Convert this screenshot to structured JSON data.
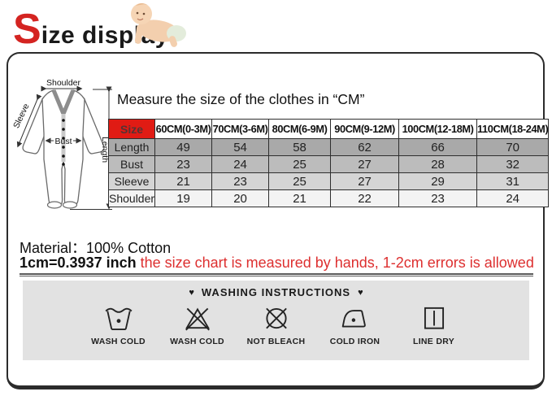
{
  "page_title": {
    "initial": "S",
    "rest": "ize display"
  },
  "diagram": {
    "shoulder_label": "Shoulder",
    "sleeve_label": "Sleeve",
    "bust_label": "Bust",
    "length_label": "Length"
  },
  "measure_heading": "Measure the size of the clothes in “CM”",
  "size_table": {
    "header": [
      "Size",
      "60CM(0-3M)",
      "70CM(3-6M)",
      "80CM(6-9M)",
      "90CM(9-12M)",
      "100CM(12-18M)",
      "110CM(18-24M)"
    ],
    "rows": [
      {
        "label": "Length",
        "values": [
          "49",
          "54",
          "58",
          "62",
          "66",
          "70"
        ]
      },
      {
        "label": "Bust",
        "values": [
          "23",
          "24",
          "25",
          "27",
          "28",
          "32"
        ]
      },
      {
        "label": "Sleeve",
        "values": [
          "21",
          "23",
          "25",
          "27",
          "29",
          "31"
        ]
      },
      {
        "label": "Shoulder",
        "values": [
          "19",
          "20",
          "21",
          "22",
          "23",
          "24"
        ]
      }
    ]
  },
  "material": {
    "label": "Material：",
    "value": "100% Cotton"
  },
  "note": {
    "conversion": "1cm=0.3937 inch",
    "disclaimer": "the size chart is measured by hands, 1-2cm errors is allowed"
  },
  "washing": {
    "heart": "♥",
    "heading": "WASHING INSTRUCTIONS",
    "items": [
      {
        "icon": "wash-tub-icon",
        "label": "WASH COLD"
      },
      {
        "icon": "no-bleach-triangle-icon",
        "label": "WASH COLD"
      },
      {
        "icon": "crossed-circle-icon",
        "label": "NOT BLEACH"
      },
      {
        "icon": "cold-iron-icon",
        "label": "COLD IRON"
      },
      {
        "icon": "line-dry-icon",
        "label": "LINE DRY"
      }
    ]
  },
  "colors": {
    "accent_red": "#e01b14",
    "title_red": "#d42421",
    "warning_red": "#dd2f2f",
    "panel_gray": "#e2e2e2"
  }
}
